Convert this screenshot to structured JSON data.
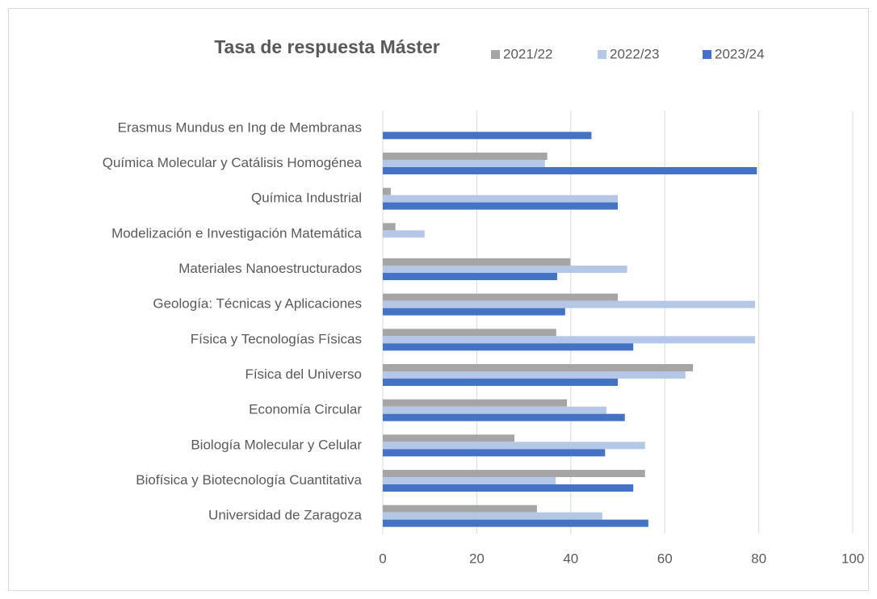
{
  "chart_data": {
    "type": "bar",
    "orientation": "horizontal",
    "title": "Tasa de respuesta Máster",
    "categories": [
      "Erasmus Mundus en Ing de Membranas",
      "Química Molecular y Catálisis Homogénea",
      "Química Industrial",
      "Modelización e Investigación Matemática",
      "Materiales Nanoestructurados",
      "Geología: Técnicas y Aplicaciones",
      "Física y Tecnologías Físicas",
      "Física del Universo",
      "Economía Circular",
      "Biología Molecular y Celular",
      "Biofísica y Biotecnología Cuantitativa",
      "Universidad de Zaragoza"
    ],
    "series": [
      {
        "name": "2021/22",
        "color": "#a5a5a5",
        "values": [
          null,
          35,
          1.7,
          2.7,
          39.9,
          50,
          36.9,
          66,
          39.2,
          28,
          55.8,
          32.8
        ]
      },
      {
        "name": "2022/23",
        "color": "#b4c7e7",
        "values": [
          null,
          34.5,
          50,
          8.9,
          52,
          79.2,
          79.2,
          64.4,
          47.6,
          55.8,
          36.8,
          46.7
        ]
      },
      {
        "name": "2023/24",
        "color": "#4472c4",
        "values": [
          44.4,
          79.6,
          50,
          null,
          37.1,
          38.8,
          53.3,
          50,
          51.5,
          47.3,
          53.3,
          56.5
        ]
      }
    ],
    "xlim": [
      0,
      100
    ],
    "xticks": [
      0,
      20,
      40,
      60,
      80,
      100
    ],
    "grid": true,
    "legend": "top"
  }
}
